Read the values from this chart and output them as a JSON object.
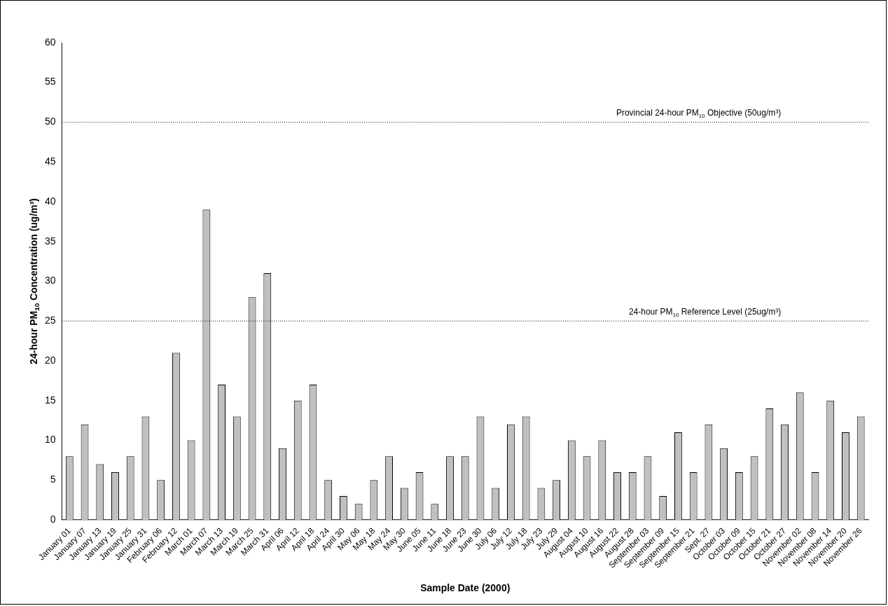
{
  "chart_data": {
    "type": "bar",
    "xlabel": "Sample Date (2000)",
    "ylabel": "24-hour PM$_{10}$ Concentration (ug/m³)",
    "categories": [
      "January 01",
      "January 07",
      "January 13",
      "January 19",
      "January 25",
      "January 31",
      "February 06",
      "February 12",
      "March 01",
      "March 07",
      "March 13",
      "March 19",
      "March 25",
      "March 31",
      "April 06",
      "April 12",
      "April 18",
      "April 24",
      "April 30",
      "May 06",
      "May 18",
      "May 24",
      "May 30",
      "June 05",
      "June 11",
      "June 18",
      "June 23",
      "June 30",
      "July 06",
      "July 12",
      "July 18",
      "July 23",
      "July 29",
      "August 04",
      "August 10",
      "August 16",
      "August 22",
      "August 28",
      "September 03",
      "September 09",
      "September 15",
      "September 21",
      "Sept. 27",
      "October 03",
      "October 09",
      "October 15",
      "October 21",
      "October 27",
      "November 02",
      "November 08",
      "November 14",
      "November 20",
      "November 26"
    ],
    "values": [
      8,
      12,
      7,
      6,
      8,
      13,
      5,
      21,
      10,
      39,
      17,
      13,
      28,
      31,
      9,
      15,
      17,
      5,
      3,
      2,
      5,
      8,
      4,
      6,
      2,
      8,
      8,
      13,
      4,
      12,
      13,
      4,
      5,
      10,
      8,
      10,
      6,
      6,
      8,
      3,
      11,
      6,
      12,
      9,
      6,
      8,
      14,
      12,
      16,
      6,
      15,
      11,
      13
    ],
    "color": "#c0c0c0",
    "ylim": [
      0,
      60
    ],
    "yticks": [
      0,
      5,
      10,
      15,
      20,
      25,
      30,
      35,
      40,
      45,
      50,
      55,
      60
    ],
    "ref_lines": [
      {
        "axis": "y",
        "value": 50,
        "label": "Provincial 24-hour PM$_{10}$ Objective (50ug/m³)",
        "color": "#000000",
        "line_style": "dotted"
      },
      {
        "axis": "y",
        "value": 25,
        "label": "24-hour PM$_{10}$ Reference Level (25ug/m³)",
        "color": "#000000",
        "line_style": "dotted"
      }
    ],
    "grid": false,
    "legend": false
  }
}
